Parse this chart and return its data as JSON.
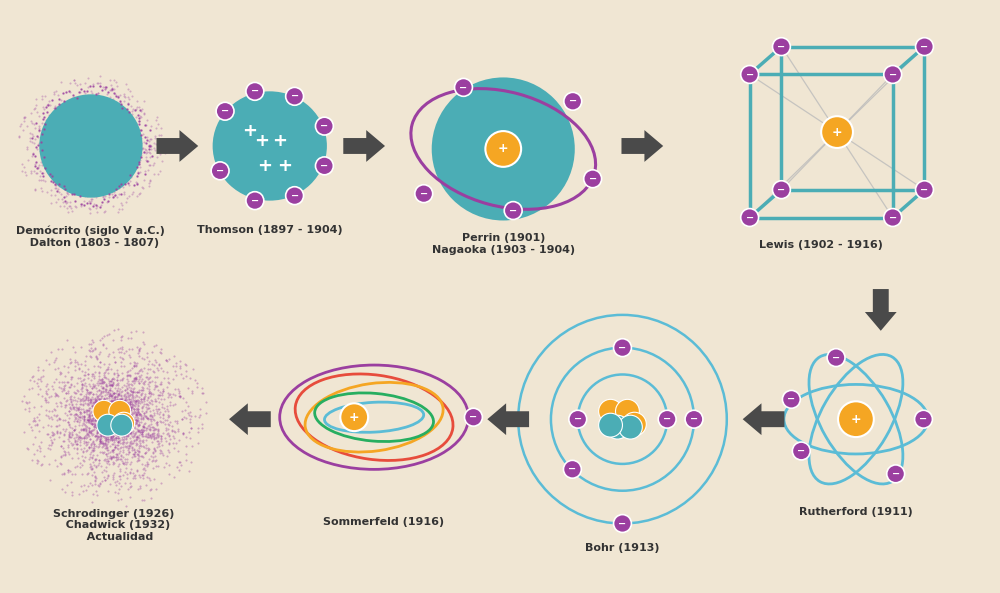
{
  "bg_color": "#f0e6d3",
  "purple": "#9b3fa0",
  "teal": "#4badb5",
  "orange": "#f5a623",
  "dark_gray": "#4a4a4a",
  "light_blue": "#5bbcd6",
  "label_color": "#333333",
  "labels": {
    "democrito": "Demócrito (siglo V a.C.)\n  Dalton (1803 - 1807)",
    "thomson": "Thomson (1897 - 1904)",
    "perrin": "Perrin (1901)\nNagaoka (1903 - 1904)",
    "lewis": "Lewis (1902 - 1916)",
    "rutherford": "Rutherford (1911)",
    "bohr": "Bohr (1913)",
    "sommerfeld": "Sommerfeld (1916)",
    "schrodinger": "Schrodinger (1926)\n  Chadwick (1932)\n   Actualidad"
  }
}
